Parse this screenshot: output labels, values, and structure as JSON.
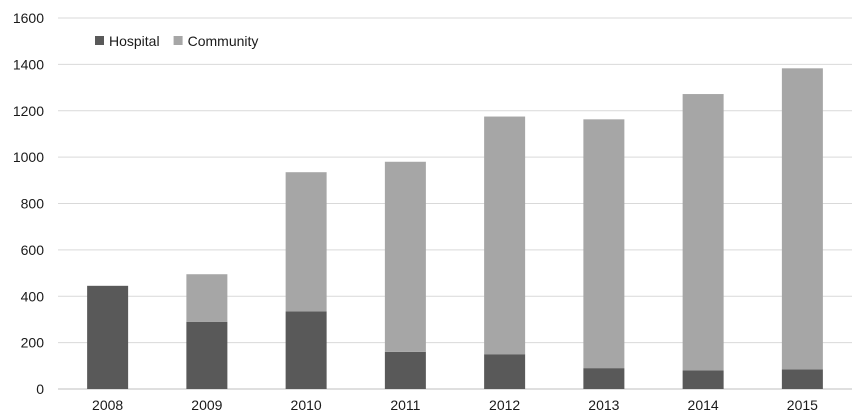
{
  "chart_data": {
    "type": "bar",
    "stacked": true,
    "title": "",
    "xlabel": "",
    "ylabel": "",
    "categories": [
      "2008",
      "2009",
      "2010",
      "2011",
      "2012",
      "2013",
      "2014",
      "2015"
    ],
    "series": [
      {
        "name": "Hospital",
        "color": "#595959",
        "values": [
          445,
          290,
          335,
          160,
          150,
          90,
          80,
          85
        ]
      },
      {
        "name": "Community",
        "color": "#a6a6a6",
        "values": [
          0,
          205,
          600,
          820,
          1025,
          1073,
          1192,
          1298
        ]
      }
    ],
    "ylim": [
      0,
      1600
    ],
    "yticks": [
      0,
      200,
      400,
      600,
      800,
      1000,
      1200,
      1400,
      1600
    ],
    "grid": true,
    "legend_position": "top-left"
  }
}
